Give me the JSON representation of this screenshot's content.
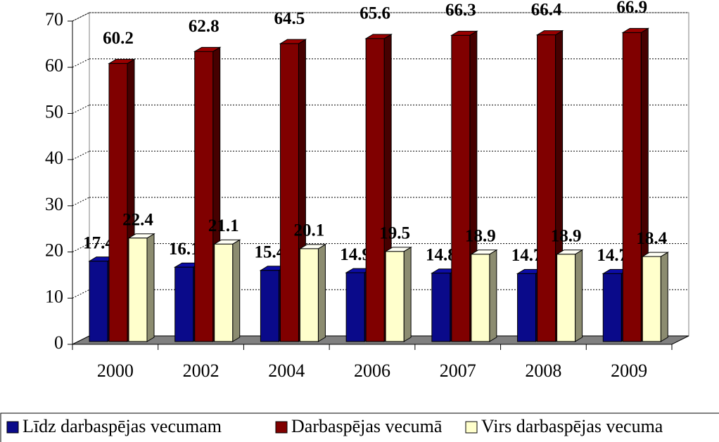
{
  "chart_data": {
    "type": "bar3d",
    "categories": [
      "2000",
      "2002",
      "2004",
      "2006",
      "2007",
      "2008",
      "2009"
    ],
    "series": [
      {
        "name": "Līdz darbaspējas vecumam",
        "color": "#0a0a8a",
        "values": [
          17.4,
          16.1,
          15.4,
          14.9,
          14.8,
          14.7,
          14.7
        ]
      },
      {
        "name": "Darbaspējas vecumā",
        "color": "#800000",
        "values": [
          60.2,
          62.8,
          64.5,
          65.6,
          66.3,
          66.4,
          66.9
        ]
      },
      {
        "name": "Virs darbaspējas vecuma",
        "color": "#ffffcc",
        "values": [
          22.4,
          21.1,
          20.1,
          19.5,
          18.9,
          18.9,
          18.4
        ]
      }
    ],
    "ylim": [
      0,
      70
    ],
    "yticks": [
      0,
      10,
      20,
      30,
      40,
      50,
      60,
      70
    ],
    "grid": true,
    "legend": "bottom"
  }
}
